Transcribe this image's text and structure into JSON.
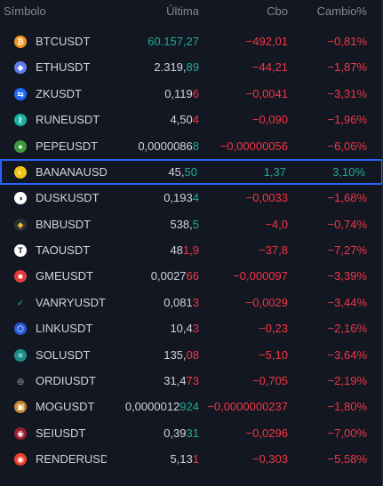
{
  "header": {
    "symbol": "Símbolo",
    "last": "Última",
    "change": "Cbo",
    "change_pct": "Cambio%"
  },
  "colors": {
    "negative": "#f23645",
    "positive": "#22ab94",
    "selected_border": "#2962ff"
  },
  "rows": [
    {
      "symbol": "BTCUSDT",
      "last_base": "60.157,27",
      "last_hl": "",
      "last_all_pos": true,
      "change": "−492,01",
      "change_pct": "−0,81%",
      "dir": "neg",
      "icon": "bitcoin-icon",
      "icon_color": "#f7931a",
      "icon_glyph": "₿"
    },
    {
      "symbol": "ETHUSDT",
      "last_base": "2.319,",
      "last_hl": "89",
      "hl_dir": "pos",
      "change": "−44,21",
      "change_pct": "−1,87%",
      "dir": "neg",
      "icon": "ethereum-icon",
      "icon_color": "#627eea",
      "icon_glyph": "◆"
    },
    {
      "symbol": "ZKUSDT",
      "last_base": "0,119",
      "last_hl": "6",
      "hl_dir": "neg",
      "change": "−0,0041",
      "change_pct": "−3,31%",
      "dir": "neg",
      "icon": "zksync-icon",
      "icon_color": "#1e69ff",
      "icon_glyph": "⇆"
    },
    {
      "symbol": "RUNEUSDT",
      "last_base": "4,50",
      "last_hl": "4",
      "hl_dir": "neg",
      "change": "−0,090",
      "change_pct": "−1,96%",
      "dir": "neg",
      "icon": "thorchain-icon",
      "icon_color": "#16b3a0",
      "icon_glyph": "ᚱ"
    },
    {
      "symbol": "PEPEUSDT",
      "last_base": "0,0000086",
      "last_hl": "8",
      "hl_dir": "pos",
      "change": "−0,00000056",
      "change_pct": "−6,06%",
      "dir": "neg",
      "icon": "pepe-icon",
      "icon_color": "#3d9a3e",
      "icon_glyph": "●"
    },
    {
      "symbol": "BANANAUSDT",
      "last_base": "45,",
      "last_hl": "50",
      "hl_dir": "pos",
      "change": "1,37",
      "change_pct": "3,10%",
      "dir": "pos",
      "selected": true,
      "icon": "banana-icon",
      "icon_color": "#f0c419",
      "icon_glyph": "◐"
    },
    {
      "symbol": "DUSKUSDT",
      "last_base": "0,193",
      "last_hl": "4",
      "hl_dir": "pos",
      "change": "−0,0033",
      "change_pct": "−1,68%",
      "dir": "neg",
      "icon": "dusk-icon",
      "icon_color": "#ffffff",
      "icon_glyph": "◑",
      "icon_text": "#131722"
    },
    {
      "symbol": "BNBUSDT",
      "last_base": "538,",
      "last_hl": "5",
      "hl_dir": "pos",
      "change": "−4,0",
      "change_pct": "−0,74%",
      "dir": "neg",
      "icon": "bnb-icon",
      "icon_color": "#2b2f36",
      "icon_glyph": "◆",
      "icon_text": "#f3ba2f"
    },
    {
      "symbol": "TAOUSDT",
      "last_base": "48",
      "last_hl": "1,9",
      "hl_dir": "neg",
      "change": "−37,8",
      "change_pct": "−7,27%",
      "dir": "neg",
      "icon": "bittensor-icon",
      "icon_color": "#ffffff",
      "icon_glyph": "T",
      "icon_text": "#131722"
    },
    {
      "symbol": "GMEUSDT",
      "last_base": "0,0027",
      "last_hl": "66",
      "hl_dir": "neg",
      "change": "−0,000097",
      "change_pct": "−3,39%",
      "dir": "neg",
      "icon": "gme-icon",
      "icon_color": "#e23d3d",
      "icon_glyph": "■"
    },
    {
      "symbol": "VANRYUSDT",
      "last_base": "0,081",
      "last_hl": "3",
      "hl_dir": "neg",
      "change": "−0,0029",
      "change_pct": "−3,44%",
      "dir": "neg",
      "icon": "vanry-icon",
      "icon_color": "#131722",
      "icon_glyph": "✓",
      "icon_text": "#1ec8b0"
    },
    {
      "symbol": "LINKUSDT",
      "last_base": "10,4",
      "last_hl": "3",
      "hl_dir": "neg",
      "change": "−0,23",
      "change_pct": "−2,16%",
      "dir": "neg",
      "icon": "chainlink-icon",
      "icon_color": "#2a5ada",
      "icon_glyph": "⬡"
    },
    {
      "symbol": "SOLUSDT",
      "last_base": "135,",
      "last_hl": "08",
      "hl_dir": "neg",
      "change": "−5,10",
      "change_pct": "−3,64%",
      "dir": "neg",
      "icon": "solana-icon",
      "icon_color": "#1b8f8a",
      "icon_glyph": "≡"
    },
    {
      "symbol": "ORDIUSDT",
      "last_base": "31,4",
      "last_hl": "73",
      "hl_dir": "neg",
      "change": "−0,705",
      "change_pct": "−2,19%",
      "dir": "neg",
      "icon": "ordi-icon",
      "icon_color": "#131722",
      "icon_glyph": "◎",
      "icon_text": "#d1d4dc"
    },
    {
      "symbol": "MOGUSDT",
      "last_base": "0,0000012",
      "last_hl": "924",
      "hl_dir": "pos",
      "change": "−0,0000000237",
      "change_pct": "−1,80%",
      "dir": "neg",
      "icon": "mog-icon",
      "icon_color": "#c2872f",
      "icon_glyph": "▣"
    },
    {
      "symbol": "SEIUSDT",
      "last_base": "0,39",
      "last_hl": "31",
      "hl_dir": "pos",
      "change": "−0,0296",
      "change_pct": "−7,00%",
      "dir": "neg",
      "icon": "sei-icon",
      "icon_color": "#9b1c2c",
      "icon_glyph": "◉"
    },
    {
      "symbol": "RENDERUSDT",
      "last_base": "5,13",
      "last_hl": "1",
      "hl_dir": "neg",
      "change": "−0,303",
      "change_pct": "−5,58%",
      "dir": "neg",
      "icon": "render-icon",
      "icon_color": "#e8412c",
      "icon_glyph": "◉"
    }
  ]
}
